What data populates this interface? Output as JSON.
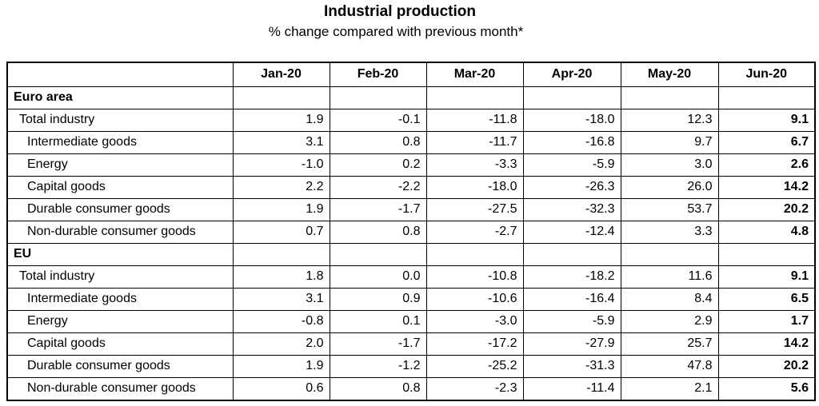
{
  "chart_data": {
    "type": "table",
    "title": "Industrial production",
    "subtitle": "% change compared with previous month*",
    "columns": [
      "Jan-20",
      "Feb-20",
      "Mar-20",
      "Apr-20",
      "May-20",
      "Jun-20"
    ],
    "groups": [
      {
        "name": "Euro area",
        "rows": [
          {
            "label": "Total industry",
            "values": [
              "1.9",
              "-0.1",
              "-11.8",
              "-18.0",
              "12.3",
              "9.1"
            ]
          },
          {
            "label": "Intermediate goods",
            "values": [
              "3.1",
              "0.8",
              "-11.7",
              "-16.8",
              "9.7",
              "6.7"
            ]
          },
          {
            "label": "Energy",
            "values": [
              "-1.0",
              "0.2",
              "-3.3",
              "-5.9",
              "3.0",
              "2.6"
            ]
          },
          {
            "label": "Capital goods",
            "values": [
              "2.2",
              "-2.2",
              "-18.0",
              "-26.3",
              "26.0",
              "14.2"
            ]
          },
          {
            "label": "Durable consumer goods",
            "values": [
              "1.9",
              "-1.7",
              "-27.5",
              "-32.3",
              "53.7",
              "20.2"
            ]
          },
          {
            "label": "Non-durable consumer goods",
            "values": [
              "0.7",
              "0.8",
              "-2.7",
              "-12.4",
              "3.3",
              "4.8"
            ]
          }
        ]
      },
      {
        "name": "EU",
        "rows": [
          {
            "label": "Total industry",
            "values": [
              "1.8",
              "0.0",
              "-10.8",
              "-18.2",
              "11.6",
              "9.1"
            ]
          },
          {
            "label": "Intermediate goods",
            "values": [
              "3.1",
              "0.9",
              "-10.6",
              "-16.4",
              "8.4",
              "6.5"
            ]
          },
          {
            "label": "Energy",
            "values": [
              "-0.8",
              "0.1",
              "-3.0",
              "-5.9",
              "2.9",
              "1.7"
            ]
          },
          {
            "label": "Capital goods",
            "values": [
              "2.0",
              "-1.7",
              "-17.2",
              "-27.9",
              "25.7",
              "14.2"
            ]
          },
          {
            "label": "Durable consumer goods",
            "values": [
              "1.9",
              "-1.2",
              "-25.2",
              "-31.3",
              "47.8",
              "20.2"
            ]
          },
          {
            "label": "Non-durable consumer goods",
            "values": [
              "0.6",
              "0.8",
              "-2.3",
              "-11.4",
              "2.1",
              "5.6"
            ]
          }
        ]
      }
    ]
  }
}
